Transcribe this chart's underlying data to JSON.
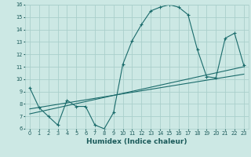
{
  "xlabel": "Humidex (Indice chaleur)",
  "ylabel": "",
  "xlim": [
    -0.5,
    23.5
  ],
  "ylim": [
    6,
    16
  ],
  "xticks": [
    0,
    1,
    2,
    3,
    4,
    5,
    6,
    7,
    8,
    9,
    10,
    11,
    12,
    13,
    14,
    15,
    16,
    17,
    18,
    19,
    20,
    21,
    22,
    23
  ],
  "yticks": [
    6,
    7,
    8,
    9,
    10,
    11,
    12,
    13,
    14,
    15,
    16
  ],
  "bg_color": "#cce8e4",
  "grid_color": "#aacfcb",
  "line_color": "#1a6b6b",
  "line1_x": [
    0,
    1,
    2,
    3,
    4,
    5,
    6,
    7,
    8,
    9,
    10,
    11,
    12,
    13,
    14,
    15,
    16,
    17,
    18,
    19,
    20,
    21,
    22,
    23
  ],
  "line1_y": [
    9.3,
    7.7,
    7.0,
    6.3,
    8.3,
    7.8,
    7.8,
    6.3,
    6.0,
    7.3,
    11.2,
    13.1,
    14.4,
    15.5,
    15.8,
    16.0,
    15.8,
    15.2,
    12.4,
    10.2,
    10.1,
    13.3,
    13.7,
    11.1
  ],
  "line2_x": [
    0,
    23
  ],
  "line2_y": [
    7.2,
    11.0
  ],
  "line3_x": [
    0,
    23
  ],
  "line3_y": [
    7.6,
    10.4
  ],
  "font_color": "#1a5a5a",
  "tick_fontsize": 4.8,
  "label_fontsize": 6.5,
  "title_fontsize": 7
}
